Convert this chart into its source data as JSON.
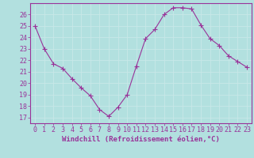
{
  "x": [
    0,
    1,
    2,
    3,
    4,
    5,
    6,
    7,
    8,
    9,
    10,
    11,
    12,
    13,
    14,
    15,
    16,
    17,
    18,
    19,
    20,
    21,
    22,
    23
  ],
  "y": [
    25.0,
    23.0,
    21.7,
    21.3,
    20.4,
    19.6,
    18.9,
    17.7,
    17.1,
    17.9,
    19.0,
    21.5,
    23.9,
    24.7,
    26.0,
    26.6,
    26.6,
    26.5,
    25.1,
    23.9,
    23.3,
    22.4,
    21.9,
    21.4
  ],
  "line_color": "#993399",
  "marker": "+",
  "marker_color": "#993399",
  "bg_color": "#b2e0df",
  "grid_color": "#c8e8e8",
  "xlabel": "Windchill (Refroidissement éolien,°C)",
  "xlabel_color": "#993399",
  "tick_color": "#993399",
  "spine_color": "#993399",
  "ylim": [
    16.5,
    27.0
  ],
  "xlim": [
    -0.5,
    23.5
  ],
  "yticks": [
    17,
    18,
    19,
    20,
    21,
    22,
    23,
    24,
    25,
    26
  ],
  "xticks": [
    0,
    1,
    2,
    3,
    4,
    5,
    6,
    7,
    8,
    9,
    10,
    11,
    12,
    13,
    14,
    15,
    16,
    17,
    18,
    19,
    20,
    21,
    22,
    23
  ],
  "xlabel_fontsize": 6.5,
  "tick_fontsize": 6,
  "line_width": 0.8,
  "marker_size": 4,
  "marker_linewidth": 0.8
}
